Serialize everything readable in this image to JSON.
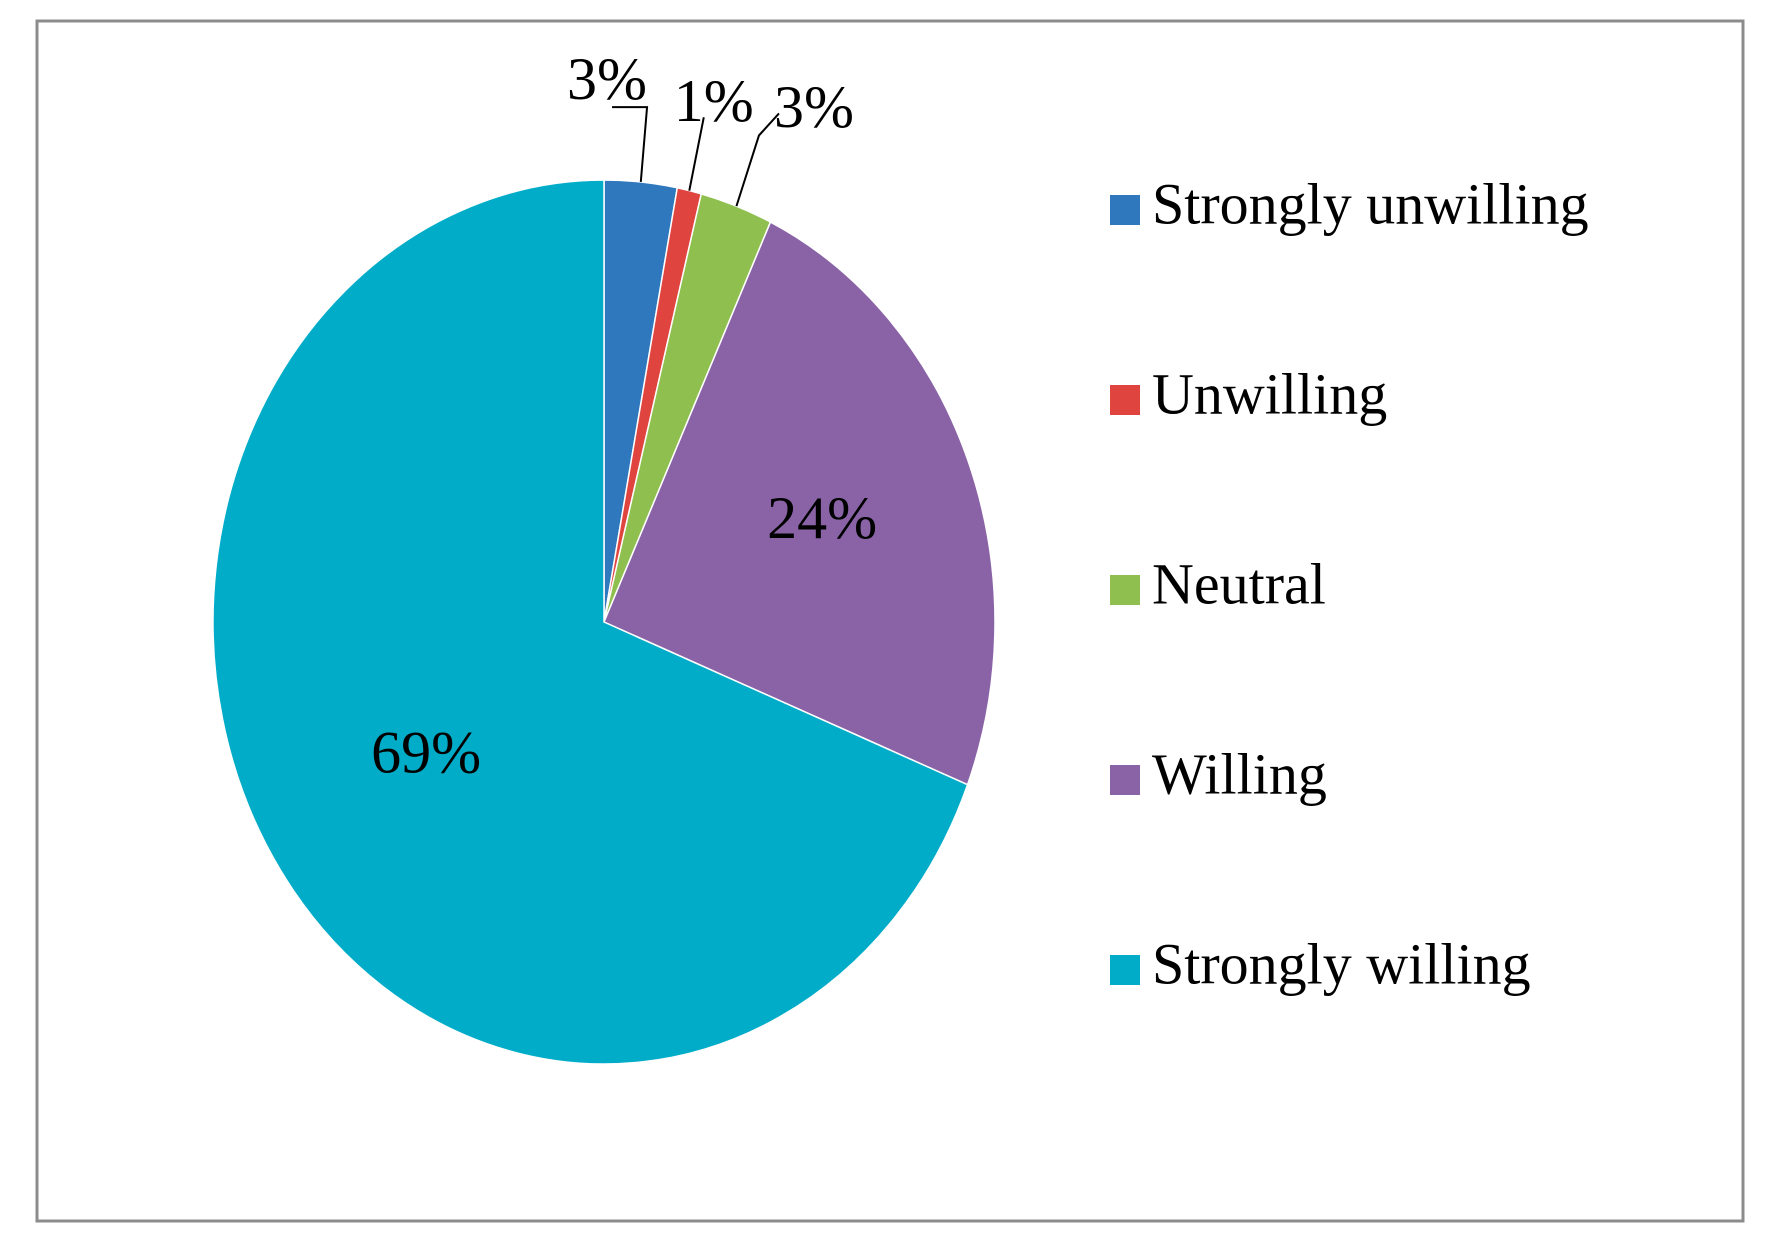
{
  "chart_data": {
    "type": "pie",
    "categories": [
      "Strongly unwilling",
      "Unwilling",
      "Neutral",
      "Willing",
      "Strongly willing"
    ],
    "values": [
      3,
      1,
      3,
      24,
      69
    ],
    "value_labels": [
      "3%",
      "1%",
      "3%",
      "24%",
      "69%"
    ],
    "colors": [
      "#2f78bd",
      "#e0443f",
      "#8fc04f",
      "#8963a6",
      "#00acc8"
    ],
    "legend": "right"
  }
}
